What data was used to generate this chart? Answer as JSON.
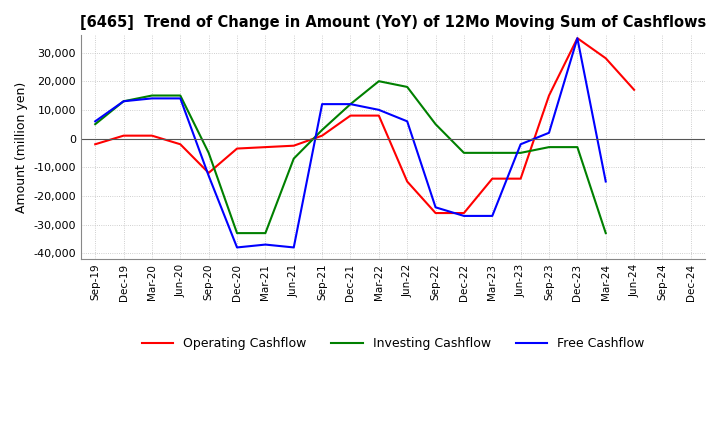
{
  "title": "[6465]  Trend of Change in Amount (YoY) of 12Mo Moving Sum of Cashflows",
  "ylabel": "Amount (million yen)",
  "ylim": [
    -42000,
    36000
  ],
  "yticks": [
    -40000,
    -30000,
    -20000,
    -10000,
    0,
    10000,
    20000,
    30000
  ],
  "x_labels": [
    "Sep-19",
    "Dec-19",
    "Mar-20",
    "Jun-20",
    "Sep-20",
    "Dec-20",
    "Mar-21",
    "Jun-21",
    "Sep-21",
    "Dec-21",
    "Mar-22",
    "Jun-22",
    "Sep-22",
    "Dec-22",
    "Mar-23",
    "Jun-23",
    "Sep-23",
    "Dec-23",
    "Mar-24",
    "Jun-24",
    "Sep-24",
    "Dec-24"
  ],
  "operating": [
    -2000,
    1000,
    1000,
    -2000,
    -12000,
    -3500,
    -3000,
    -2500,
    1000,
    8000,
    8000,
    -15000,
    -26000,
    -26000,
    -14000,
    -14000,
    15000,
    35000,
    28000,
    17000,
    null,
    null
  ],
  "investing": [
    5000,
    13000,
    15000,
    15000,
    -5000,
    -33000,
    -33000,
    -7000,
    3000,
    12000,
    20000,
    18000,
    5000,
    -5000,
    -5000,
    -5000,
    -3000,
    -3000,
    -33000,
    null,
    null,
    null
  ],
  "free": [
    6000,
    13000,
    14000,
    14000,
    -13000,
    -38000,
    -37000,
    -38000,
    12000,
    12000,
    10000,
    6000,
    -24000,
    -27000,
    -27000,
    -2000,
    2000,
    35000,
    -15000,
    null,
    null,
    null
  ],
  "colors": {
    "operating": "#ff0000",
    "investing": "#008000",
    "free": "#0000ff"
  },
  "legend_labels": [
    "Operating Cashflow",
    "Investing Cashflow",
    "Free Cashflow"
  ],
  "background_color": "#ffffff",
  "grid_color": "#c0c0c0",
  "grid_style": "dotted"
}
